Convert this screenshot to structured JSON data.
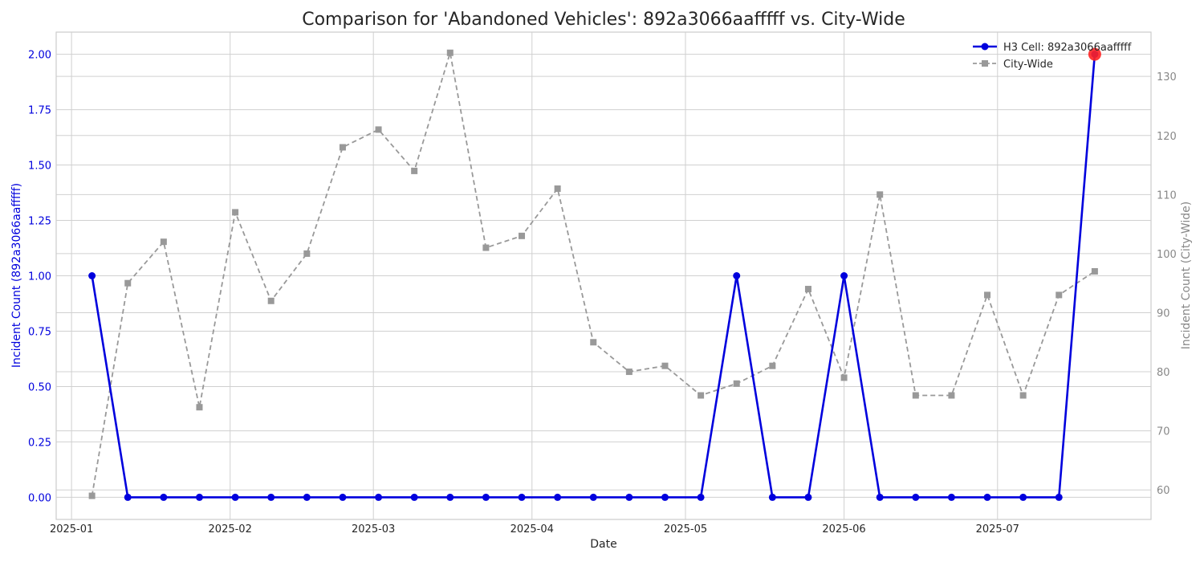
{
  "chart_data": {
    "type": "line",
    "title": "Comparison for 'Abandoned Vehicles': 892a3066aafffff vs. City-Wide",
    "xlabel": "Date",
    "ylabel_left": "Incident Count (892a3066aafffff)",
    "ylabel_right": "Incident Count (City-Wide)",
    "x_tick_labels": [
      "2025-01",
      "2025-02",
      "2025-03",
      "2025-04",
      "2025-05",
      "2025-06",
      "2025-07"
    ],
    "xlim": [
      "2024-12-29",
      "2025-07-31"
    ],
    "ylim_left": [
      -0.1,
      2.1
    ],
    "ylim_right": [
      55,
      137.5
    ],
    "left_ticks": [
      "0.00",
      "0.25",
      "0.50",
      "0.75",
      "1.00",
      "1.25",
      "1.50",
      "1.75",
      "2.00"
    ],
    "right_ticks": [
      "60",
      "70",
      "80",
      "90",
      "100",
      "110",
      "120",
      "130"
    ],
    "grid": true,
    "legend_position": "top-right",
    "dates": [
      "2025-01-05",
      "2025-01-12",
      "2025-01-19",
      "2025-01-26",
      "2025-02-02",
      "2025-02-09",
      "2025-02-16",
      "2025-02-23",
      "2025-03-02",
      "2025-03-09",
      "2025-03-16",
      "2025-03-23",
      "2025-03-30",
      "2025-04-06",
      "2025-04-13",
      "2025-04-20",
      "2025-04-27",
      "2025-05-04",
      "2025-05-11",
      "2025-05-18",
      "2025-05-25",
      "2025-06-01",
      "2025-06-08",
      "2025-06-15",
      "2025-06-22",
      "2025-06-29",
      "2025-07-06",
      "2025-07-13",
      "2025-07-20"
    ],
    "series": [
      {
        "name": "H3 Cell: 892a3066aafffff",
        "axis": "left",
        "color": "#0000dd",
        "marker": "circle",
        "values": [
          1,
          0,
          0,
          0,
          0,
          0,
          0,
          0,
          0,
          0,
          0,
          0,
          0,
          0,
          0,
          0,
          0,
          0,
          1,
          0,
          0,
          1,
          0,
          0,
          0,
          0,
          0,
          0,
          2
        ]
      },
      {
        "name": "City-Wide",
        "axis": "right",
        "color": "#999999",
        "marker": "square",
        "line_style": "dashed",
        "values": [
          59,
          95,
          102,
          74,
          107,
          92,
          100,
          118,
          121,
          114,
          134,
          101,
          103,
          111,
          85,
          80,
          81,
          76,
          78,
          81,
          94,
          79,
          110,
          76,
          76,
          93,
          76,
          93,
          97
        ]
      }
    ],
    "highlight": {
      "series": "H3 Cell: 892a3066aafffff",
      "date": "2025-07-20",
      "value": 2,
      "color": "#ff2222"
    }
  }
}
